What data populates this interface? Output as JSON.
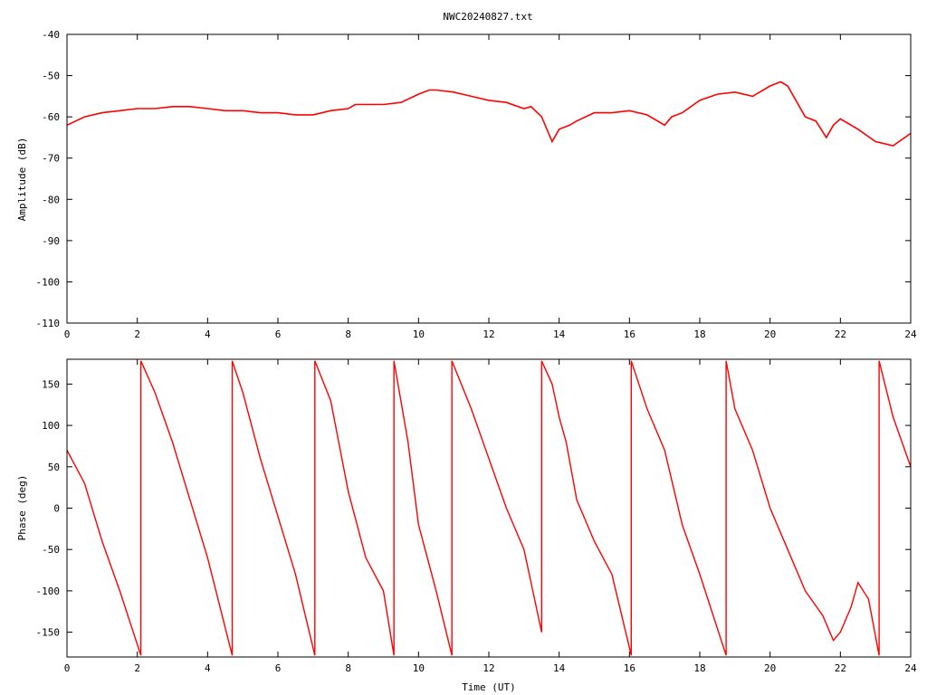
{
  "chart_data": [
    {
      "type": "line",
      "title": "NWC20240827.txt",
      "xlabel": "",
      "ylabel": "Amplitude (dB)",
      "xlim": [
        0,
        24
      ],
      "ylim": [
        -110,
        -40
      ],
      "xticks": [
        "0",
        "2",
        "4",
        "6",
        "8",
        "10",
        "12",
        "14",
        "16",
        "18",
        "20",
        "22",
        "24"
      ],
      "yticks": [
        "-40",
        "-50",
        "-60",
        "-70",
        "-80",
        "-90",
        "-100",
        "-110"
      ],
      "grid": false,
      "color": "#ff0000",
      "series": [
        {
          "x": [
            0,
            0.5,
            1,
            1.5,
            2,
            2.5,
            3,
            3.5,
            4,
            4.5,
            5,
            5.5,
            6,
            6.5,
            7,
            7.5,
            8,
            8.2,
            8.5,
            9,
            9.5,
            10,
            10.3,
            10.5,
            11,
            11.5,
            12,
            12.5,
            13,
            13.2,
            13.5,
            13.8,
            14,
            14.3,
            14.5,
            15,
            15.5,
            16,
            16.5,
            17,
            17.2,
            17.5,
            18,
            18.5,
            19,
            19.5,
            20,
            20.3,
            20.5,
            21,
            21.3,
            21.6,
            21.8,
            22,
            22.5,
            23,
            23.5,
            24
          ],
          "y": [
            -62,
            -60,
            -59,
            -58.5,
            -58,
            -58,
            -57.5,
            -57.5,
            -58,
            -58.5,
            -58.5,
            -59,
            -59,
            -59.5,
            -59.5,
            -58.5,
            -58,
            -57,
            -57,
            -57,
            -56.5,
            -54.5,
            -53.5,
            -53.5,
            -54,
            -55,
            -56,
            -56.5,
            -58,
            -57.5,
            -60,
            -66,
            -63,
            -62,
            -61,
            -59,
            -59,
            -58.5,
            -59.5,
            -62,
            -60,
            -59,
            -56,
            -54.5,
            -54,
            -55,
            -52.5,
            -51.5,
            -52.5,
            -60,
            -61,
            -65,
            -62,
            -60.5,
            -63,
            -66,
            -67,
            -64
          ]
        }
      ]
    },
    {
      "type": "line",
      "title": "",
      "xlabel": "Time (UT)",
      "ylabel": "Phase (deg)",
      "xlim": [
        0,
        24
      ],
      "ylim": [
        -180,
        180
      ],
      "xticks": [
        "0",
        "2",
        "4",
        "6",
        "8",
        "10",
        "12",
        "14",
        "16",
        "18",
        "20",
        "22",
        "24"
      ],
      "yticks": [
        "150",
        "100",
        "50",
        "0",
        "-50",
        "-100",
        "-150"
      ],
      "grid": false,
      "color": "#ff0000",
      "series": [
        {
          "x": [
            0,
            0.5,
            1,
            1.5,
            2.1,
            2.1,
            2.5,
            3,
            3.5,
            4,
            4.7,
            4.7,
            5,
            5.5,
            6,
            6.5,
            7.05,
            7.05,
            7.5,
            8,
            8.5,
            9,
            9.3,
            9.3,
            9.7,
            10,
            10.5,
            10.95,
            10.95,
            11.5,
            12,
            12.5,
            13,
            13.5,
            13.5,
            13.8,
            14,
            14.2,
            14.5,
            15,
            15.5,
            16.05,
            16.05,
            16.5,
            17,
            17.5,
            18,
            18.75,
            18.75,
            19,
            19.5,
            20,
            20.5,
            21,
            21.5,
            21.8,
            22,
            22.3,
            22.5,
            22.8,
            23.1,
            23.1,
            23.5,
            24
          ],
          "y": [
            70,
            30,
            -40,
            -100,
            -178,
            178,
            140,
            80,
            10,
            -60,
            -178,
            178,
            140,
            60,
            -10,
            -80,
            -178,
            178,
            130,
            20,
            -60,
            -100,
            -178,
            178,
            80,
            -20,
            -100,
            -178,
            178,
            120,
            60,
            0,
            -50,
            -150,
            178,
            150,
            110,
            80,
            10,
            -40,
            -80,
            -178,
            178,
            120,
            70,
            -20,
            -80,
            -178,
            178,
            120,
            70,
            0,
            -50,
            -100,
            -130,
            -160,
            -150,
            -120,
            -90,
            -110,
            -178,
            178,
            110,
            50
          ]
        }
      ]
    }
  ]
}
